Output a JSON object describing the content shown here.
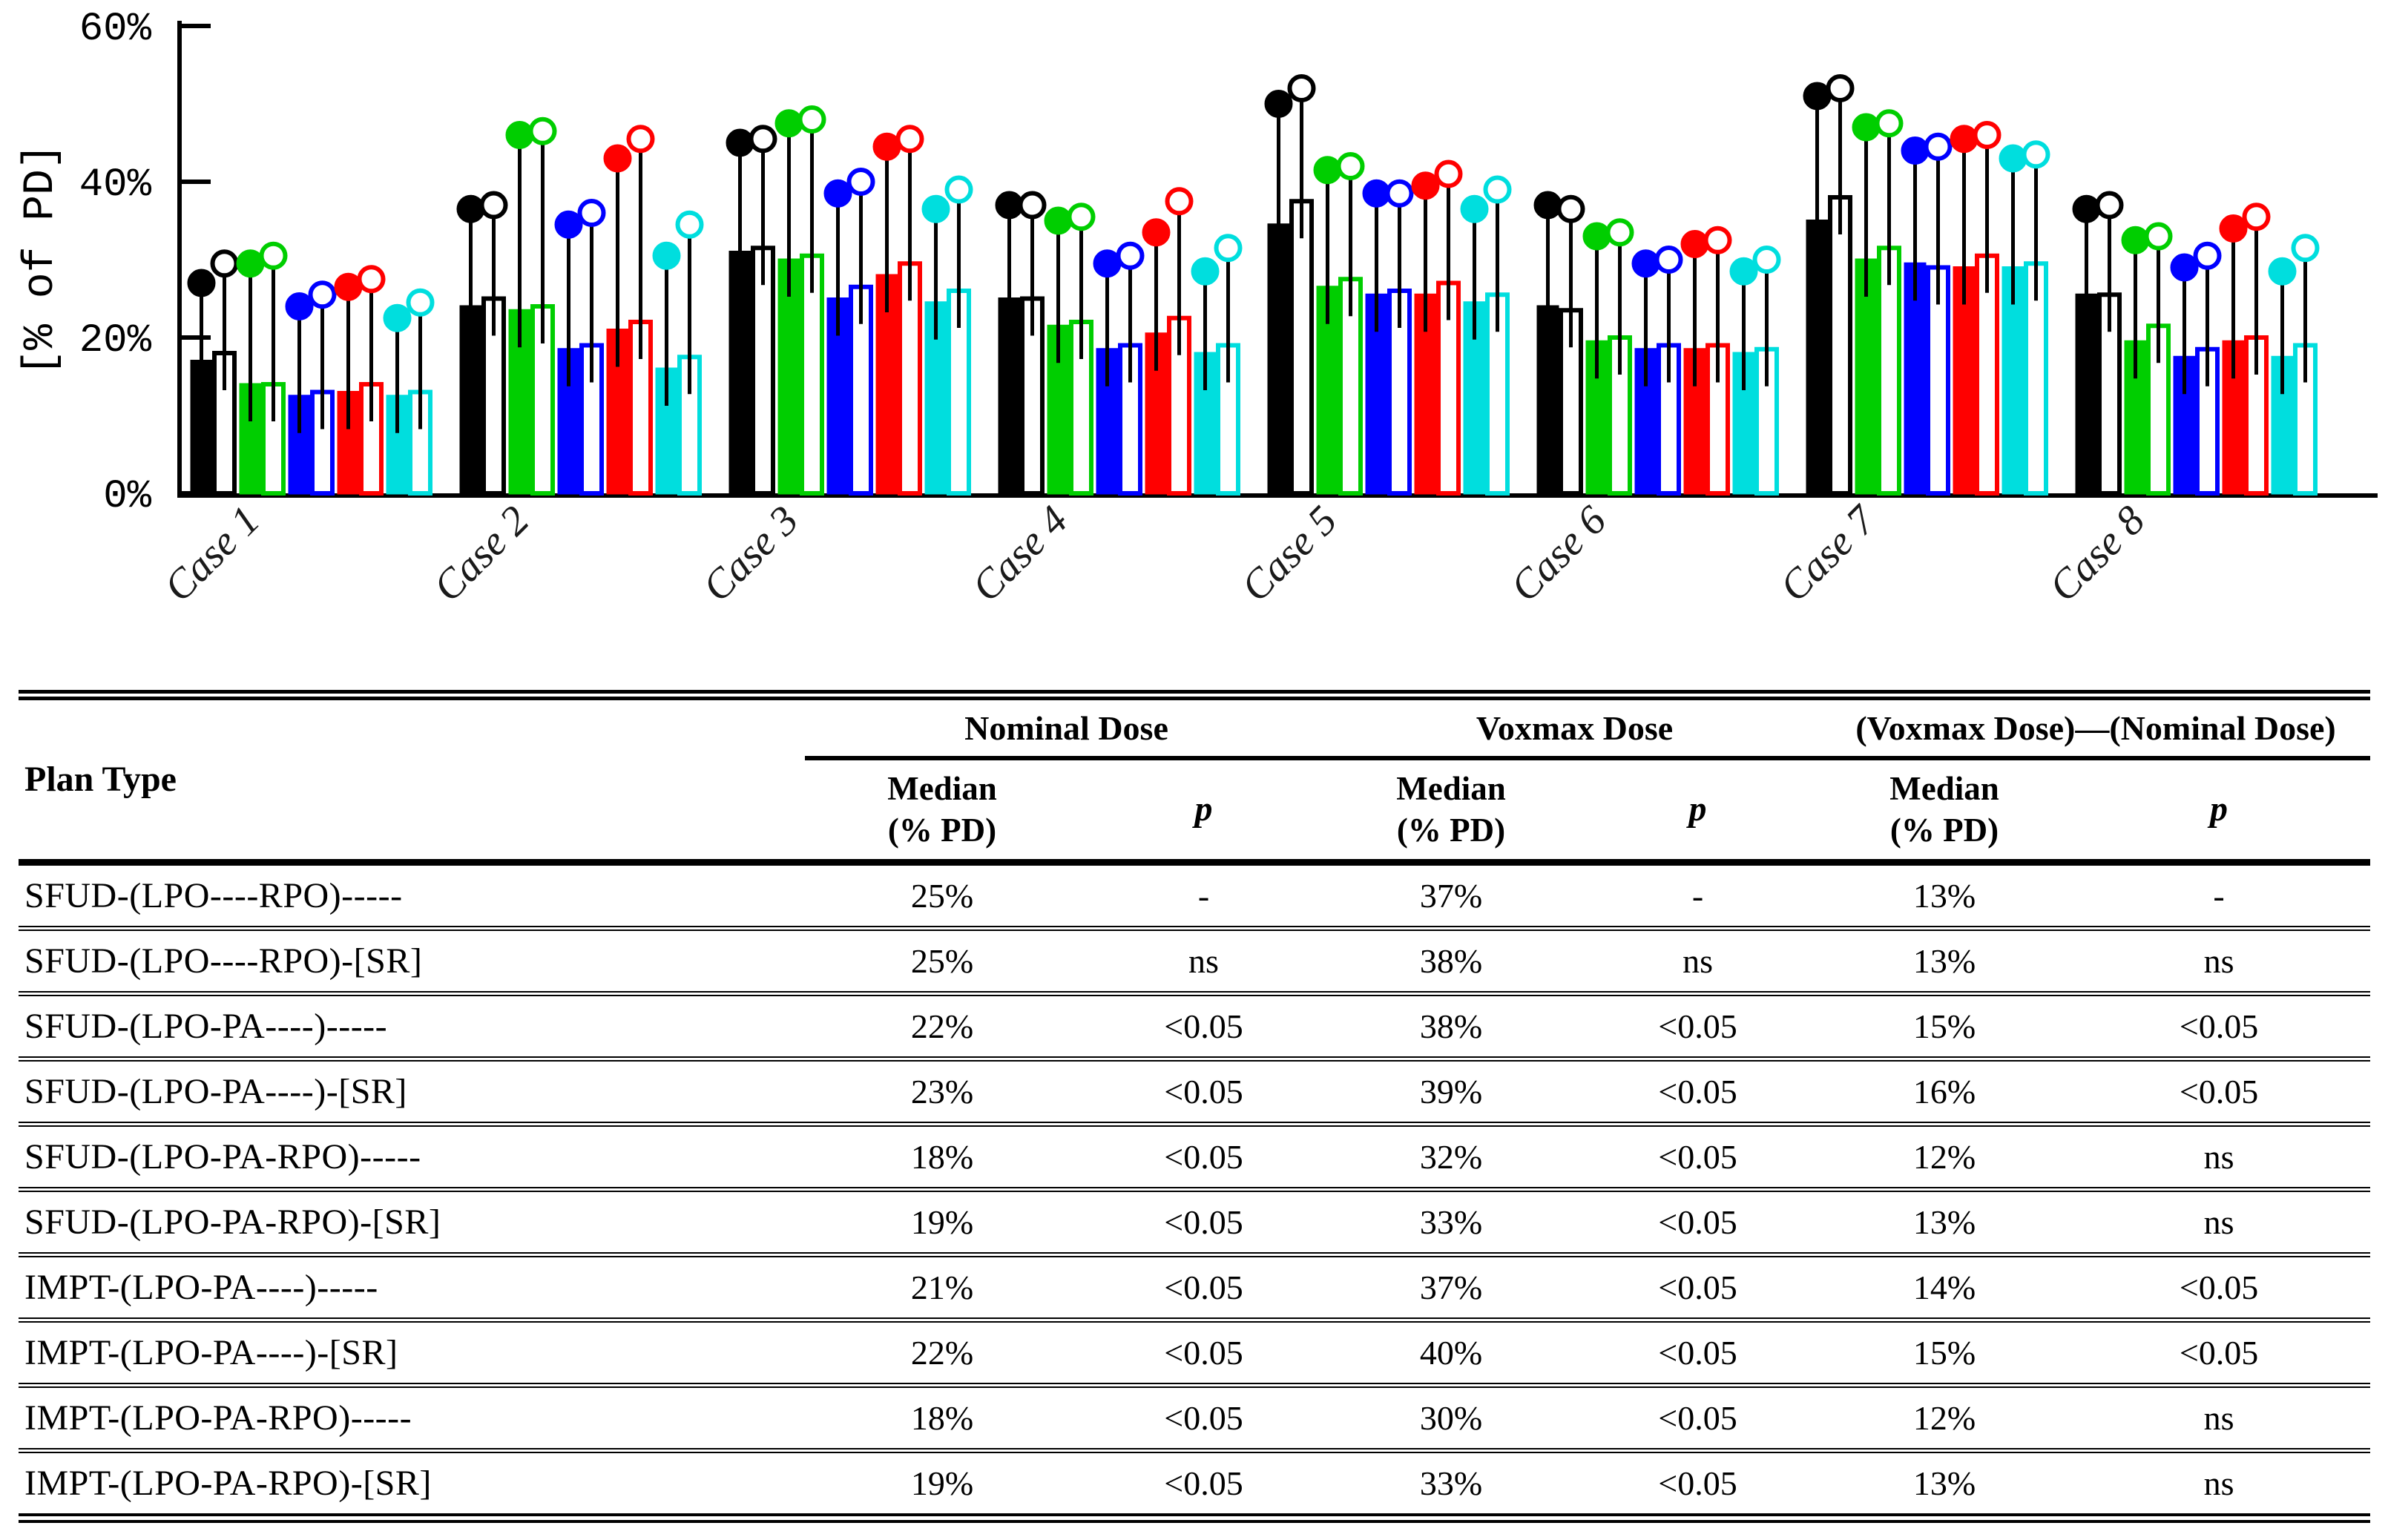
{
  "figure_label": "dose-summary-figure",
  "chart_data": {
    "type": "bar",
    "subtype": "grouped-bars-with-lollipop-markers",
    "title": "",
    "xlabel": "",
    "ylabel": "[% of PD]",
    "ylim": [
      0,
      60
    ],
    "yticks": [
      0,
      20,
      40,
      60
    ],
    "ytick_labels": [
      "0%",
      "20%",
      "40%",
      "60%"
    ],
    "grid": false,
    "legend_position": "none",
    "categories": [
      "Case 1",
      "Case 2",
      "Case 3",
      "Case 4",
      "Case 5",
      "Case 6",
      "Case 7",
      "Case 8"
    ],
    "bar_meaning": "Nominal Dose (% of PD)",
    "marker_meaning": "Voxmax Dose (% of PD)",
    "series": [
      {
        "name": "SFUD-(LPO----RPO)-----",
        "color": "#000000",
        "style": "filled",
        "bars": [
          17,
          24,
          31,
          25,
          34.5,
          24,
          35,
          25.5
        ],
        "markers": [
          27,
          36.5,
          45,
          37,
          50,
          37,
          51,
          36.5
        ]
      },
      {
        "name": "SFUD-(LPO----RPO)-[SR]",
        "color": "#000000",
        "style": "open",
        "bars": [
          18,
          25,
          31.5,
          25,
          37.5,
          23.5,
          38,
          25.5
        ],
        "markers": [
          29.5,
          37,
          45.5,
          37,
          52,
          36.5,
          52,
          37
        ]
      },
      {
        "name": "SFUD-(LPO-PA----)-----",
        "color": "#00CE00",
        "style": "filled",
        "bars": [
          14,
          23.5,
          30,
          21.5,
          26.5,
          19.5,
          30,
          19.5
        ],
        "markers": [
          29.5,
          46,
          47.5,
          35,
          41.5,
          33,
          47,
          32.5
        ]
      },
      {
        "name": "SFUD-(LPO-PA----)-[SR]",
        "color": "#00CE00",
        "style": "open",
        "bars": [
          14,
          24,
          30.5,
          22,
          27.5,
          20,
          31.5,
          21.5
        ],
        "markers": [
          30.5,
          46.5,
          48,
          35.5,
          42,
          33.5,
          47.5,
          33
        ]
      },
      {
        "name": "SFUD-(LPO-PA-RPO)-----",
        "color": "#0000FF",
        "style": "filled",
        "bars": [
          12.5,
          18.5,
          25,
          18.5,
          25.5,
          18.5,
          29.5,
          17.5
        ],
        "markers": [
          24,
          34.5,
          38.5,
          29.5,
          38.5,
          29.5,
          44,
          29
        ]
      },
      {
        "name": "SFUD-(LPO-PA-RPO)-[SR]",
        "color": "#0000FF",
        "style": "open",
        "bars": [
          13,
          19,
          26.5,
          19,
          26,
          19,
          29,
          18.5
        ],
        "markers": [
          25.5,
          36,
          40,
          30.5,
          38.5,
          30,
          44.5,
          30.5
        ]
      },
      {
        "name": "IMPT-(LPO-PA----)-----",
        "color": "#FF0000",
        "style": "filled",
        "bars": [
          13,
          21,
          28,
          20.5,
          25.5,
          18.5,
          29,
          19.5
        ],
        "markers": [
          26.5,
          43,
          44.5,
          33.5,
          39.5,
          32,
          45.5,
          34
        ]
      },
      {
        "name": "IMPT-(LPO-PA----)-[SR]",
        "color": "#FF0000",
        "style": "open",
        "bars": [
          14,
          22,
          29.5,
          22.5,
          27,
          19,
          30.5,
          20
        ],
        "markers": [
          27.5,
          45.5,
          45.5,
          37.5,
          41,
          32.5,
          46,
          35.5
        ]
      },
      {
        "name": "IMPT-(LPO-PA-RPO)-----",
        "color": "#00DEDE",
        "style": "filled",
        "bars": [
          12.5,
          16,
          24.5,
          18,
          24.5,
          18,
          29,
          17.5
        ],
        "markers": [
          22.5,
          30.5,
          36.5,
          28.5,
          36.5,
          28.5,
          43,
          28.5
        ]
      },
      {
        "name": "IMPT-(LPO-PA-RPO)-[SR]",
        "color": "#00DEDE",
        "style": "open",
        "bars": [
          13,
          17.5,
          26,
          19,
          25.5,
          18.5,
          29.5,
          19
        ],
        "markers": [
          24.5,
          34.5,
          39,
          31.5,
          39,
          30,
          43.5,
          31.5
        ]
      }
    ]
  },
  "table": {
    "plan_type_header": "Plan Type",
    "groups": [
      {
        "label": "Nominal Dose"
      },
      {
        "label": "Voxmax Dose"
      },
      {
        "label": "(Voxmax Dose)—(Nominal Dose)"
      }
    ],
    "subheaders": {
      "median": "Median\n(% PD)",
      "p": "p"
    },
    "rows": [
      {
        "plan": "SFUD-(LPO----RPO)-----",
        "cells": [
          "25%",
          "-",
          "37%",
          "-",
          "13%",
          "-"
        ]
      },
      {
        "plan": "SFUD-(LPO----RPO)-[SR]",
        "cells": [
          "25%",
          "ns",
          "38%",
          "ns",
          "13%",
          "ns"
        ]
      },
      {
        "plan": "SFUD-(LPO-PA----)-----",
        "cells": [
          "22%",
          "<0.05",
          "38%",
          "<0.05",
          "15%",
          "<0.05"
        ]
      },
      {
        "plan": "SFUD-(LPO-PA----)-[SR]",
        "cells": [
          "23%",
          "<0.05",
          "39%",
          "<0.05",
          "16%",
          "<0.05"
        ]
      },
      {
        "plan": "SFUD-(LPO-PA-RPO)-----",
        "cells": [
          "18%",
          "<0.05",
          "32%",
          "<0.05",
          "12%",
          "ns"
        ]
      },
      {
        "plan": "SFUD-(LPO-PA-RPO)-[SR]",
        "cells": [
          "19%",
          "<0.05",
          "33%",
          "<0.05",
          "13%",
          "ns"
        ]
      },
      {
        "plan": "IMPT-(LPO-PA----)-----",
        "cells": [
          "21%",
          "<0.05",
          "37%",
          "<0.05",
          "14%",
          "<0.05"
        ]
      },
      {
        "plan": "IMPT-(LPO-PA----)-[SR]",
        "cells": [
          "22%",
          "<0.05",
          "40%",
          "<0.05",
          "15%",
          "<0.05"
        ]
      },
      {
        "plan": "IMPT-(LPO-PA-RPO)-----",
        "cells": [
          "18%",
          "<0.05",
          "30%",
          "<0.05",
          "12%",
          "ns"
        ]
      },
      {
        "plan": "IMPT-(LPO-PA-RPO)-[SR]",
        "cells": [
          "19%",
          "<0.05",
          "33%",
          "<0.05",
          "13%",
          "ns"
        ]
      }
    ]
  }
}
